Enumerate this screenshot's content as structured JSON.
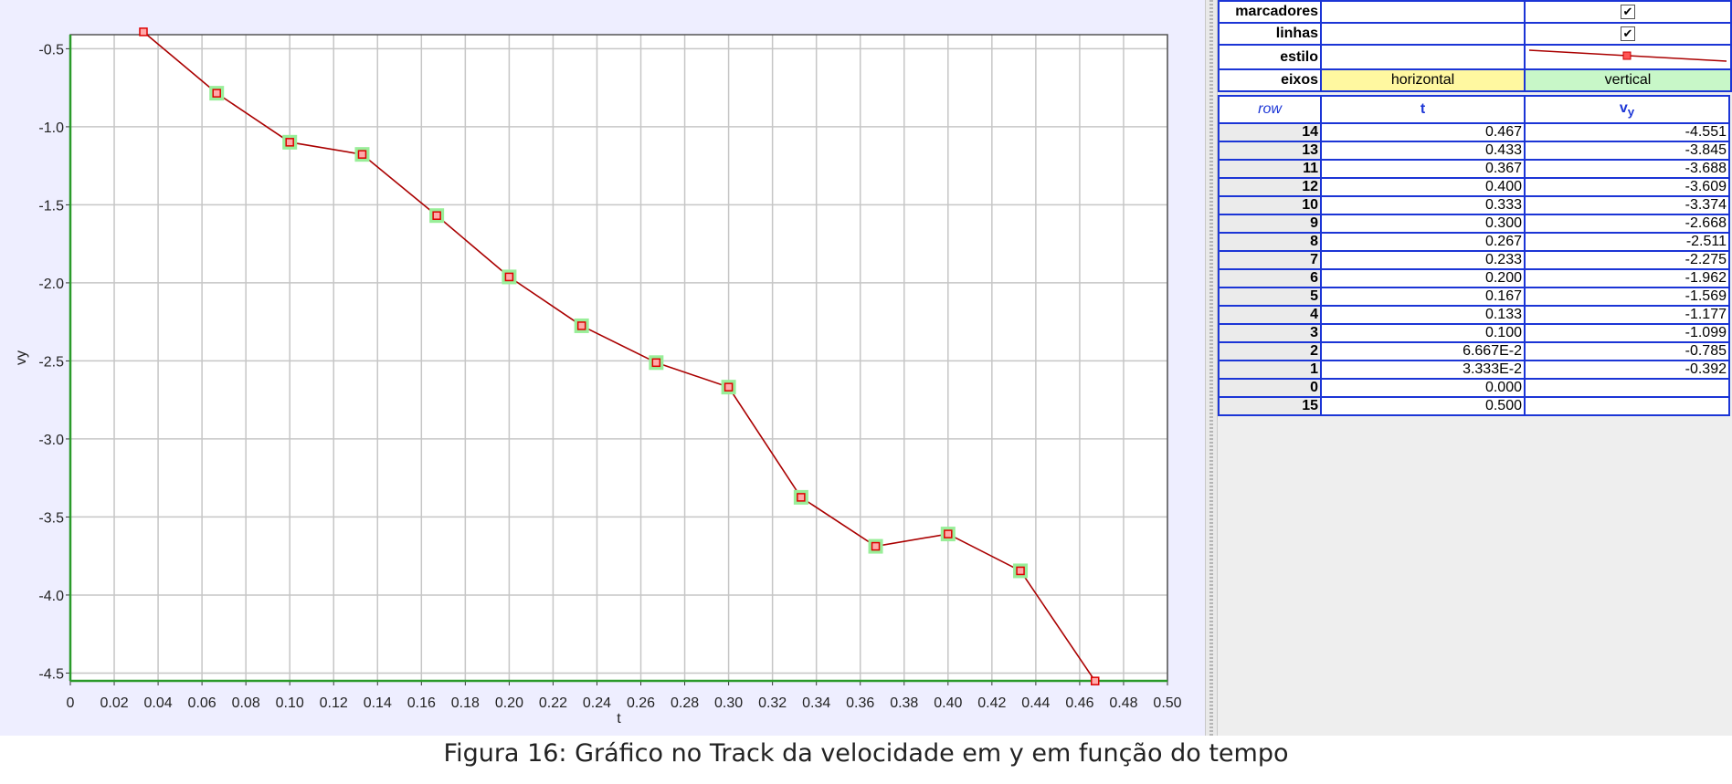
{
  "chart_data": {
    "type": "line",
    "xlabel": "t",
    "ylabel": "vy",
    "xlim": [
      0,
      0.5
    ],
    "ylim": [
      -4.55,
      -0.41
    ],
    "xticks": [
      "0",
      "0.02",
      "0.04",
      "0.06",
      "0.08",
      "0.10",
      "0.12",
      "0.14",
      "0.16",
      "0.18",
      "0.20",
      "0.22",
      "0.24",
      "0.26",
      "0.28",
      "0.30",
      "0.32",
      "0.34",
      "0.36",
      "0.38",
      "0.40",
      "0.42",
      "0.44",
      "0.46",
      "0.48",
      "0.50"
    ],
    "yticks": [
      "-0.5",
      "-1.0",
      "-1.5",
      "-2.0",
      "-2.5",
      "-3.0",
      "-3.5",
      "-4.0",
      "-4.5"
    ],
    "grid": true,
    "series": [
      {
        "x": [
          0.0333,
          0.0667,
          0.1,
          0.133,
          0.167,
          0.2,
          0.233,
          0.267,
          0.3,
          0.333,
          0.367,
          0.4,
          0.433,
          0.467
        ],
        "y": [
          -0.392,
          -0.785,
          -1.099,
          -1.177,
          -1.569,
          -1.962,
          -2.275,
          -2.511,
          -2.668,
          -3.374,
          -3.688,
          -3.609,
          -3.845,
          -4.551
        ],
        "color": "#aa0000",
        "marker_color": "#dd0000",
        "highlight": "#99ee99"
      }
    ]
  },
  "table": {
    "props": {
      "marcadores": "marcadores",
      "linhas": "linhas",
      "estilo": "estilo",
      "eixos": "eixos",
      "horizontal": "horizontal",
      "vertical": "vertical",
      "check": "✔"
    },
    "headers": {
      "row": "row",
      "t": "t",
      "v": "v",
      "sub": "y"
    },
    "rows": [
      {
        "row": "14",
        "t": "0.467",
        "v": "-4.551"
      },
      {
        "row": "13",
        "t": "0.433",
        "v": "-3.845"
      },
      {
        "row": "11",
        "t": "0.367",
        "v": "-3.688"
      },
      {
        "row": "12",
        "t": "0.400",
        "v": "-3.609"
      },
      {
        "row": "10",
        "t": "0.333",
        "v": "-3.374"
      },
      {
        "row": "9",
        "t": "0.300",
        "v": "-2.668"
      },
      {
        "row": "8",
        "t": "0.267",
        "v": "-2.511"
      },
      {
        "row": "7",
        "t": "0.233",
        "v": "-2.275"
      },
      {
        "row": "6",
        "t": "0.200",
        "v": "-1.962"
      },
      {
        "row": "5",
        "t": "0.167",
        "v": "-1.569"
      },
      {
        "row": "4",
        "t": "0.133",
        "v": "-1.177"
      },
      {
        "row": "3",
        "t": "0.100",
        "v": "-1.099"
      },
      {
        "row": "2",
        "t": "6.667E-2",
        "v": "-0.785"
      },
      {
        "row": "1",
        "t": "3.333E-2",
        "v": "-0.392"
      },
      {
        "row": "0",
        "t": "0.000",
        "v": ""
      },
      {
        "row": "15",
        "t": "0.500",
        "v": ""
      }
    ]
  },
  "caption": "Figura 16: Gráfico no Track da velocidade em y em função do tempo"
}
